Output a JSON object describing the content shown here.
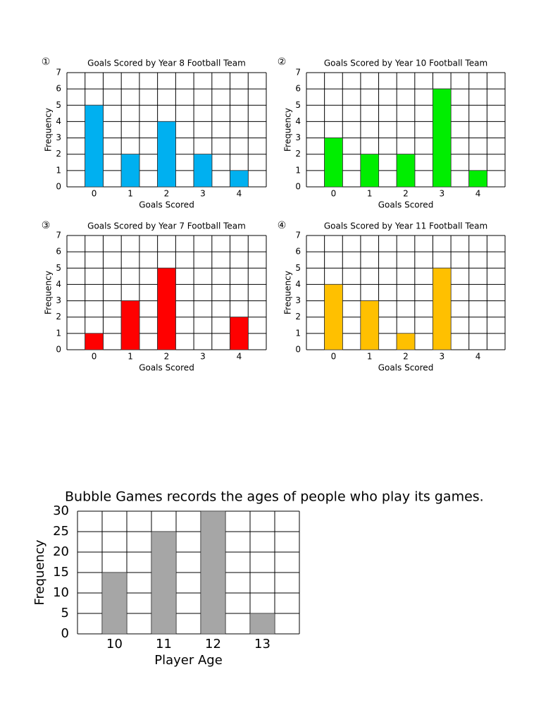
{
  "chart_data": [
    {
      "type": "bar",
      "number": "①",
      "title": "Goals Scored by Year 8 Football Team",
      "xlabel": "Goals Scored",
      "ylabel": "Frequency",
      "categories": [
        "0",
        "1",
        "2",
        "3",
        "4"
      ],
      "values": [
        5,
        2,
        4,
        2,
        1
      ],
      "color": "#00b0f0",
      "ylim": [
        0,
        7
      ],
      "yticks": [
        0,
        1,
        2,
        3,
        4,
        5,
        6,
        7
      ],
      "grid": true
    },
    {
      "type": "bar",
      "number": "②",
      "title": "Goals Scored by Year 10 Football Team",
      "xlabel": "Goals Scored",
      "ylabel": "Frequency",
      "categories": [
        "0",
        "1",
        "2",
        "3",
        "4"
      ],
      "values": [
        3,
        2,
        2,
        6,
        1
      ],
      "color": "#00ee00",
      "ylim": [
        0,
        7
      ],
      "yticks": [
        0,
        1,
        2,
        3,
        4,
        5,
        6,
        7
      ],
      "grid": true
    },
    {
      "type": "bar",
      "number": "③",
      "title": "Goals Scored by Year 7 Football Team",
      "xlabel": "Goals Scored",
      "ylabel": "Frequency",
      "categories": [
        "0",
        "1",
        "2",
        "3",
        "4"
      ],
      "values": [
        1,
        3,
        5,
        0,
        2
      ],
      "color": "#ff0000",
      "ylim": [
        0,
        7
      ],
      "yticks": [
        0,
        1,
        2,
        3,
        4,
        5,
        6,
        7
      ],
      "grid": true
    },
    {
      "type": "bar",
      "number": "④",
      "title": "Goals Scored by Year 11 Football Team",
      "xlabel": "Goals Scored",
      "ylabel": "Frequency",
      "categories": [
        "0",
        "1",
        "2",
        "3",
        "4"
      ],
      "values": [
        4,
        3,
        1,
        5,
        0
      ],
      "color": "#ffc000",
      "ylim": [
        0,
        7
      ],
      "yticks": [
        0,
        1,
        2,
        3,
        4,
        5,
        6,
        7
      ],
      "grid": true
    },
    {
      "type": "bar",
      "title": "Bubble Games records the ages of people who play its games.",
      "xlabel": "Player Age",
      "ylabel": "Frequency",
      "categories": [
        "10",
        "11",
        "12",
        "13"
      ],
      "values": [
        15,
        25,
        30,
        5
      ],
      "color": "#a6a6a6",
      "ylim": [
        0,
        30
      ],
      "yticks": [
        0,
        5,
        10,
        15,
        20,
        25,
        30
      ],
      "grid": true
    }
  ]
}
